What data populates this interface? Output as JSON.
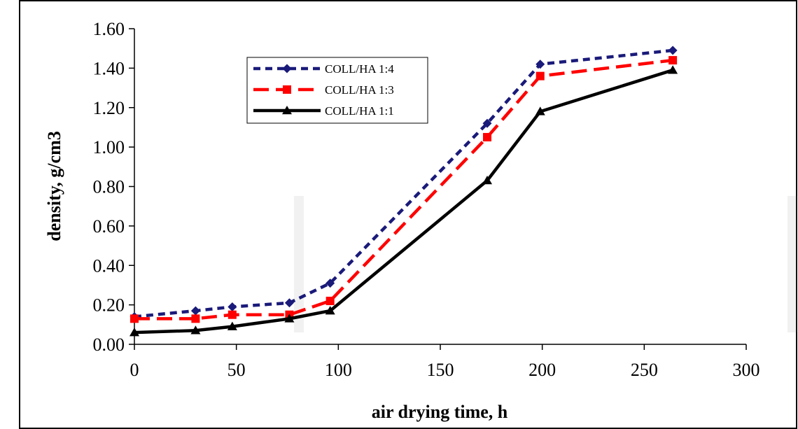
{
  "chart_data": {
    "type": "line",
    "title": "",
    "xlabel": "air drying time, h",
    "ylabel": "density, g/cm3",
    "xlim": [
      0,
      300
    ],
    "ylim": [
      0,
      1.6
    ],
    "x_ticks": [
      "0",
      "50",
      "100",
      "150",
      "200",
      "250",
      "300"
    ],
    "y_ticks": [
      "0.00",
      "0.20",
      "0.40",
      "0.60",
      "0.80",
      "1.00",
      "1.20",
      "1.40",
      "1.60"
    ],
    "grid": false,
    "legend_position": "top-left inside plot",
    "series": [
      {
        "name": "COLL/HA 1:4",
        "color": "#1a1a7a",
        "line_style": "dotted",
        "marker": "diamond",
        "x": [
          0,
          30,
          48,
          76,
          96,
          173,
          199,
          264
        ],
        "y": [
          0.14,
          0.17,
          0.19,
          0.21,
          0.31,
          1.12,
          1.42,
          1.49
        ]
      },
      {
        "name": "COLL/HA 1:3",
        "color": "#ff0000",
        "line_style": "dashed",
        "marker": "square",
        "x": [
          0,
          30,
          48,
          76,
          96,
          173,
          199,
          264
        ],
        "y": [
          0.13,
          0.13,
          0.15,
          0.15,
          0.22,
          1.05,
          1.36,
          1.44
        ]
      },
      {
        "name": "COLL/HA 1:1",
        "color": "#000000",
        "line_style": "solid",
        "marker": "triangle",
        "x": [
          0,
          30,
          48,
          76,
          96,
          173,
          199,
          264
        ],
        "y": [
          0.06,
          0.07,
          0.09,
          0.13,
          0.17,
          0.83,
          1.18,
          1.39
        ]
      }
    ]
  }
}
